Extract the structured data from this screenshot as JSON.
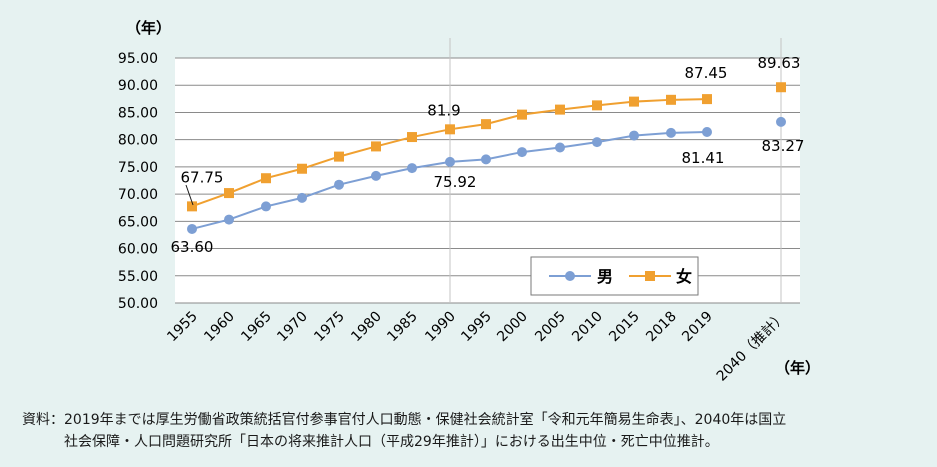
{
  "chart_data": {
    "type": "line",
    "y_unit_label": "（年）",
    "x_unit_label": "（年）",
    "categories": [
      "1955",
      "1960",
      "1965",
      "1970",
      "1975",
      "1980",
      "1985",
      "1990",
      "1995",
      "2000",
      "2005",
      "2010",
      "2015",
      "2018",
      "2019",
      "2040（推計）"
    ],
    "ylim": [
      50,
      95
    ],
    "yticks": [
      "50.00",
      "55.00",
      "60.00",
      "65.00",
      "70.00",
      "75.00",
      "80.00",
      "85.00",
      "90.00",
      "95.00"
    ],
    "grid": true,
    "legend_position": "bottom-right",
    "series": [
      {
        "name": "男",
        "color": "#7d9fd4",
        "marker": "circle",
        "values": [
          63.6,
          65.32,
          67.74,
          69.31,
          71.73,
          73.35,
          74.78,
          75.92,
          76.38,
          77.72,
          78.56,
          79.55,
          80.75,
          81.25,
          81.41,
          83.27
        ]
      },
      {
        "name": "女",
        "color": "#f0a030",
        "marker": "square",
        "values": [
          67.75,
          70.19,
          72.92,
          74.66,
          76.89,
          78.76,
          80.48,
          81.9,
          82.85,
          84.6,
          85.52,
          86.3,
          86.99,
          87.32,
          87.45,
          89.63
        ]
      }
    ],
    "annotations": [
      {
        "text": "63.60",
        "series": 0,
        "index": 0,
        "pos": "below"
      },
      {
        "text": "67.75",
        "series": 1,
        "index": 0,
        "pos": "above"
      },
      {
        "text": "75.92",
        "series": 0,
        "index": 7,
        "pos": "below"
      },
      {
        "text": "81.9",
        "series": 1,
        "index": 7,
        "pos": "above"
      },
      {
        "text": "81.41",
        "series": 0,
        "index": 14,
        "pos": "below"
      },
      {
        "text": "87.45",
        "series": 1,
        "index": 14,
        "pos": "above"
      },
      {
        "text": "83.27",
        "series": 0,
        "index": 15,
        "pos": "below"
      },
      {
        "text": "89.63",
        "series": 1,
        "index": 15,
        "pos": "above"
      }
    ]
  },
  "source": {
    "line1": "資料：2019年までは厚生労働省政策統括官付参事官付人口動態・保健社会統計室「令和元年簡易生命表」、2040年は国立",
    "line2": "社会保障・人口問題研究所「日本の将来推計人口（平成29年推計）」における出生中位・死亡中位推計。"
  }
}
